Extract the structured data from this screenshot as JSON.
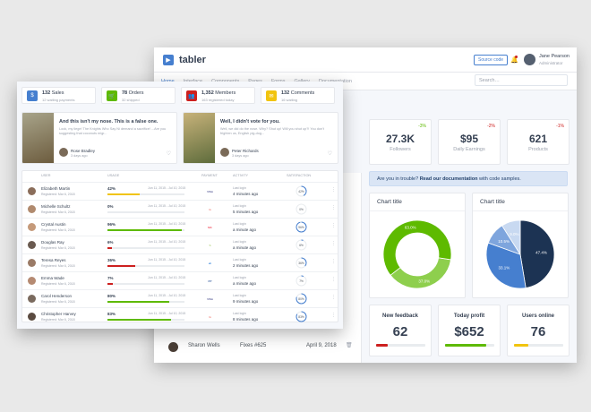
{
  "back": {
    "brand": "tabler",
    "source_btn": "Source code",
    "user": {
      "name": "Jane Pearson",
      "role": "Administrator"
    },
    "nav": [
      {
        "label": "Home",
        "active": true
      },
      {
        "label": "Interface"
      },
      {
        "label": "Components"
      },
      {
        "label": "Pages"
      },
      {
        "label": "Forms"
      },
      {
        "label": "Gallery"
      },
      {
        "label": "Documentation"
      }
    ],
    "search_placeholder": "Search…",
    "stats": [
      {
        "delta": "-3%",
        "dir": "up",
        "value": "27.3K",
        "label": "Followers"
      },
      {
        "delta": "-2%",
        "dir": "down",
        "value": "$95",
        "label": "Daily Earnings"
      },
      {
        "delta": "-1%",
        "dir": "down",
        "value": "621",
        "label": "Products"
      }
    ],
    "alert": {
      "pre": "Are you in trouble? ",
      "link": "Read our documentation",
      "post": " with code samples."
    },
    "charts": [
      {
        "title": "Chart title",
        "type": "donut",
        "slices": [
          {
            "value": 37.0,
            "color": "#8ecf4d",
            "label": "37.0%"
          },
          {
            "value": 63.0,
            "color": "#5eba00",
            "label": "63.0%"
          }
        ]
      },
      {
        "title": "Chart title",
        "type": "pie",
        "slices": [
          {
            "value": 47.4,
            "color": "#1c3353",
            "label": "47.4%"
          },
          {
            "value": 33.1,
            "color": "#467fcf",
            "label": "33.1%"
          },
          {
            "value": 10.5,
            "color": "#7ea5dd",
            "label": "10.5%"
          },
          {
            "value": 9.0,
            "color": "#c8d9f1",
            "label": "9.0%"
          }
        ]
      }
    ],
    "bottom": [
      {
        "title": "New feedback",
        "value": "62",
        "fill": 0.25,
        "color": "#cd201f"
      },
      {
        "title": "Today profit",
        "value": "$652",
        "fill": 0.84,
        "color": "#5eba00"
      },
      {
        "title": "Users online",
        "value": "76",
        "fill": 0.3,
        "color": "#f1c40f"
      }
    ],
    "row": {
      "name": "Sharon Wells",
      "issue": "Fixes #625",
      "date": "April 9, 2018"
    }
  },
  "front": {
    "minis": [
      {
        "value": "132",
        "label": "Sales",
        "sub": "12 waiting payments",
        "color": "#467fcf",
        "icon": "$"
      },
      {
        "value": "78",
        "label": "Orders",
        "sub": "32 shipped",
        "color": "#5eba00",
        "icon": "🛒"
      },
      {
        "value": "1,352",
        "label": "Members",
        "sub": "163 registered today",
        "color": "#cd201f",
        "icon": "👥"
      },
      {
        "value": "132",
        "label": "Comments",
        "sub": "16 waiting",
        "color": "#f1c40f",
        "icon": "✉"
      }
    ],
    "blogs": [
      {
        "title": "And this isn't my nose. This is a false one.",
        "text": "Look, my liege! The Knights Who Say Ni demand a sacrifice! ...Are you suggesting that coconuts migr...",
        "author": "Rose Bradley",
        "ago": "3 days ago",
        "img1": "#6b5a3c",
        "img2": "#a8a48a"
      },
      {
        "title": "Well, I didn't vote for you.",
        "text": "Well, we did do the nose. Why? Shut up! Will you shut up?! You don't frighten us, English pig-dog...",
        "author": "Peter Richards",
        "ago": "3 days ago",
        "img1": "#5b6a3a",
        "img2": "#c7b27a"
      }
    ],
    "headers": {
      "user": "USER",
      "usage": "USAGE",
      "payment": "PAYMENT",
      "activity": "ACTIVITY",
      "satisfaction": "SATISFACTION"
    },
    "rows": [
      {
        "name": "Elizabeth Martin",
        "reg": "Registered: Mar 6, 2018",
        "pct": "42%",
        "usage": 0.42,
        "bar": "#f1c40f",
        "range": "Jun 11, 2015 - Jul 10, 2015",
        "pay": "visa",
        "pay_label": "VISA",
        "last": "Last login",
        "act": "4 minutes ago",
        "sat": "42%",
        "satv": 0.42,
        "av": "#8a6d5a"
      },
      {
        "name": "Michelle Schultz",
        "reg": "Registered: Mar 6, 2018",
        "pct": "0%",
        "usage": 0.0,
        "bar": "#467fcf",
        "range": "Jun 11, 2015 - Jul 10, 2015",
        "pay": "gmail",
        "pay_label": "G",
        "last": "Last login",
        "act": "5 minutes ago",
        "sat": "0%",
        "satv": 0.0,
        "av": "#b08a6e"
      },
      {
        "name": "Crystal Austin",
        "reg": "Registered: Mar 6, 2018",
        "pct": "96%",
        "usage": 0.96,
        "bar": "#5eba00",
        "range": "Jun 11, 2015 - Jul 10, 2015",
        "pay": "mc",
        "pay_label": "MC",
        "last": "Last login",
        "act": "a minute ago",
        "sat": "96%",
        "satv": 0.96,
        "av": "#c59a7a"
      },
      {
        "name": "Douglas Ray",
        "reg": "Registered: Mar 6, 2018",
        "pct": "6%",
        "usage": 0.06,
        "bar": "#cd201f",
        "range": "Jun 11, 2015 - Jul 10, 2015",
        "pay": "shopify",
        "pay_label": "S",
        "last": "Last login",
        "act": "a minute ago",
        "sat": "6%",
        "satv": 0.06,
        "av": "#6a5a50"
      },
      {
        "name": "Teresa Reyes",
        "reg": "Registered: Mar 6, 2018",
        "pct": "36%",
        "usage": 0.36,
        "bar": "#cd201f",
        "range": "Jun 11, 2015 - Jul 10, 2015",
        "pay": "ebay",
        "pay_label": "eb",
        "last": "Last login",
        "act": "2 minutes ago",
        "sat": "36%",
        "satv": 0.36,
        "av": "#9a7a66"
      },
      {
        "name": "Emma Wade",
        "reg": "Registered: Mar 6, 2018",
        "pct": "7%",
        "usage": 0.07,
        "bar": "#cd201f",
        "range": "Jun 11, 2015 - Jul 10, 2015",
        "pay": "paypal",
        "pay_label": "PP",
        "last": "Last login",
        "act": "a minute ago",
        "sat": "7%",
        "satv": 0.07,
        "av": "#b58a72"
      },
      {
        "name": "Carol Henderson",
        "reg": "Registered: Mar 6, 2018",
        "pct": "80%",
        "usage": 0.8,
        "bar": "#5eba00",
        "range": "Jun 11, 2015 - Jul 10, 2015",
        "pay": "visa",
        "pay_label": "VISA",
        "last": "Last login",
        "act": "9 minutes ago",
        "sat": "80%",
        "satv": 0.8,
        "av": "#7a6a5e"
      },
      {
        "name": "Christopher Harvey",
        "reg": "Registered: Mar 6, 2018",
        "pct": "83%",
        "usage": 0.83,
        "bar": "#5eba00",
        "range": "Jun 11, 2015 - Jul 10, 2015",
        "pay": "gmail",
        "pay_label": "G",
        "last": "Last login",
        "act": "8 minutes ago",
        "sat": "83%",
        "satv": 0.83,
        "av": "#5a4a40"
      }
    ]
  }
}
